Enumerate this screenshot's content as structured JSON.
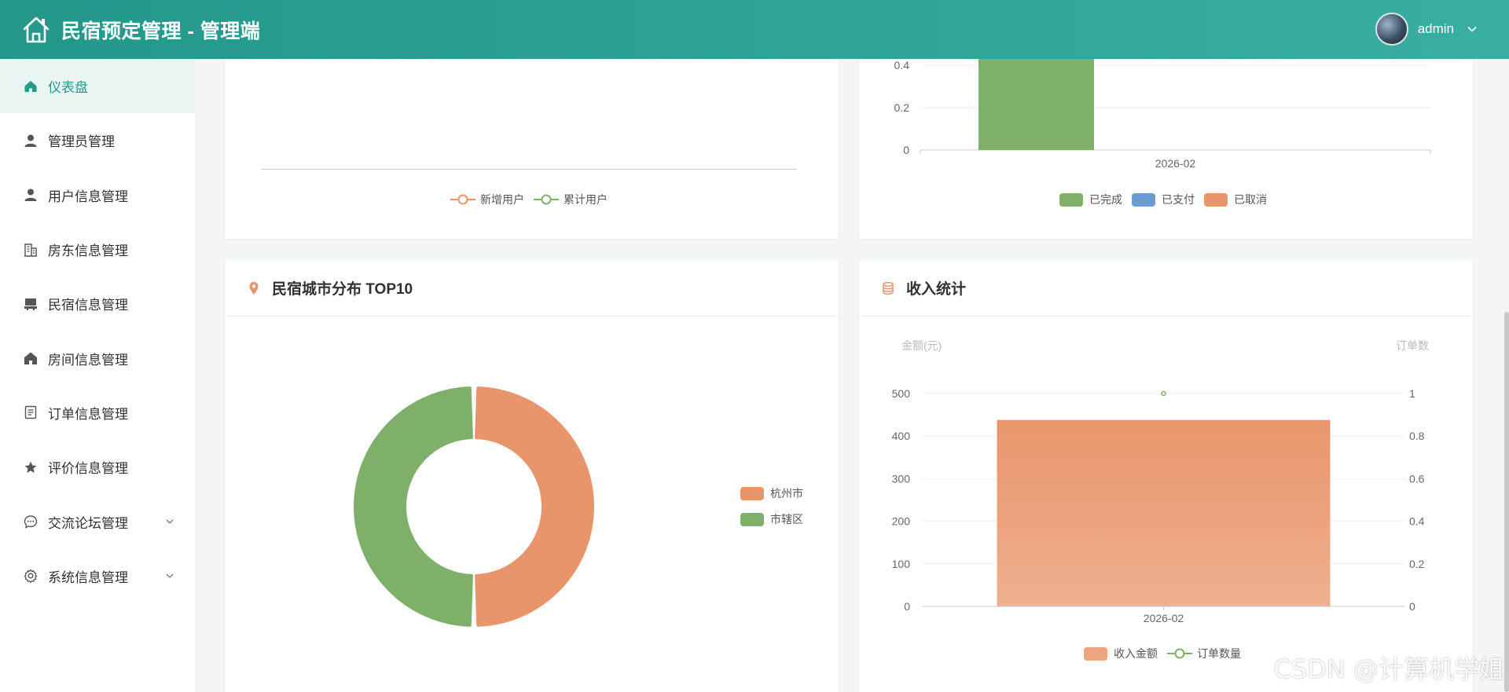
{
  "header": {
    "title": "民宿预定管理 - 管理端",
    "username": "admin"
  },
  "sidebar": {
    "items": [
      {
        "label": "仪表盘",
        "icon": "home-icon",
        "active": true
      },
      {
        "label": "管理员管理",
        "icon": "user-icon"
      },
      {
        "label": "用户信息管理",
        "icon": "user-icon"
      },
      {
        "label": "房东信息管理",
        "icon": "building-icon"
      },
      {
        "label": "民宿信息管理",
        "icon": "shop-icon"
      },
      {
        "label": "房间信息管理",
        "icon": "house-icon"
      },
      {
        "label": "订单信息管理",
        "icon": "document-icon"
      },
      {
        "label": "评价信息管理",
        "icon": "star-icon"
      },
      {
        "label": "交流论坛管理",
        "icon": "chat-icon",
        "expandable": true
      },
      {
        "label": "系统信息管理",
        "icon": "gear-icon",
        "expandable": true
      }
    ]
  },
  "user_chart": {
    "legend": [
      "新增用户",
      "累计用户"
    ],
    "colors": [
      "#e8956b",
      "#7fb069"
    ]
  },
  "order_chart": {
    "legend": [
      "已完成",
      "已支付",
      "已取消"
    ],
    "colors": [
      "#7fb069",
      "#6b9bd1",
      "#e8956b"
    ]
  },
  "city_card": {
    "title": "民宿城市分布 TOP10"
  },
  "income_card": {
    "title": "收入统计"
  },
  "watermark": "CSDN @计算机学姐",
  "chart_data": [
    {
      "type": "bar",
      "categories": [
        "2026-02"
      ],
      "series": [
        {
          "name": "已完成",
          "values": [
            1
          ]
        },
        {
          "name": "已支付",
          "values": [
            0
          ]
        },
        {
          "name": "已取消",
          "values": [
            0
          ]
        }
      ],
      "yticks": [
        "0",
        "0.2",
        "0.4"
      ],
      "visible_ylim": [
        0,
        0.4
      ]
    },
    {
      "type": "pie",
      "donut": true,
      "labels": [
        "杭州市",
        "市辖区"
      ],
      "values": [
        1,
        1
      ],
      "colors": [
        "#e8956b",
        "#7fb069"
      ]
    },
    {
      "type": "bar",
      "categories": [
        "2026-02"
      ],
      "series": [
        {
          "name": "收入金额",
          "type": "bar",
          "values": [
            438
          ]
        },
        {
          "name": "订单数量",
          "type": "line",
          "values": [
            1
          ]
        }
      ],
      "ylabel": "金额(元)",
      "y2label": "订单数",
      "ylim": [
        0,
        500
      ],
      "y2lim": [
        0,
        1
      ],
      "yticks": [
        "0",
        "100",
        "200",
        "300",
        "400",
        "500"
      ],
      "y2ticks": [
        "0",
        "0.2",
        "0.4",
        "0.6",
        "0.8",
        "1"
      ],
      "xlabel": ""
    }
  ]
}
